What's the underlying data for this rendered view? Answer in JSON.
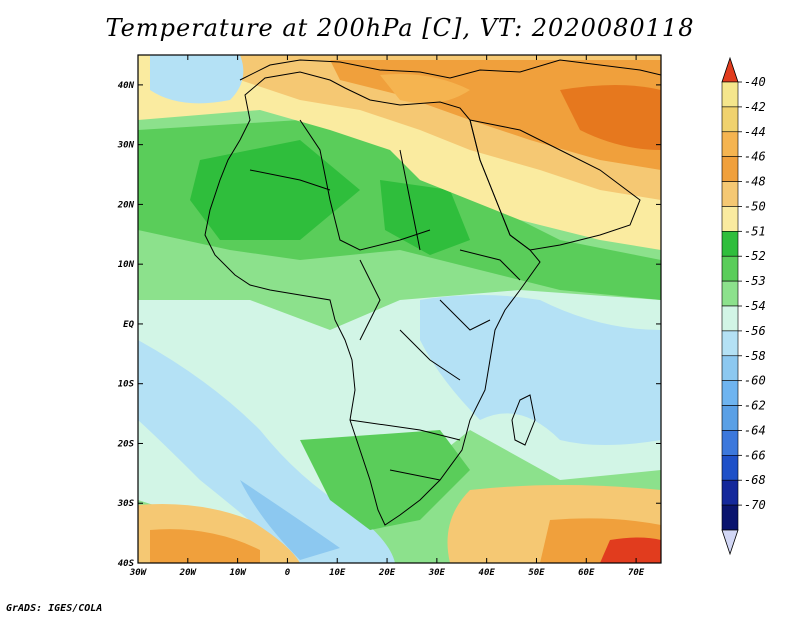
{
  "title": "Temperature at 200hPa [C], VT: 2020080118",
  "credit": "GrADS: IGES/COLA",
  "map": {
    "lon_range": [
      -30,
      75
    ],
    "lat_range": [
      -40,
      45
    ],
    "lon_ticks": [
      "30W",
      "20W",
      "10W",
      "0",
      "10E",
      "20E",
      "30E",
      "40E",
      "50E",
      "60E",
      "70E"
    ],
    "lat_ticks": [
      "40N",
      "30N",
      "20N",
      "10N",
      "EQ",
      "10S",
      "20S",
      "30S",
      "40S"
    ]
  },
  "colorbar": {
    "labels": [
      "-40",
      "-42",
      "-44",
      "-46",
      "-48",
      "-50",
      "-51",
      "-52",
      "-53",
      "-54",
      "-56",
      "-58",
      "-60",
      "-62",
      "-64",
      "-66",
      "-68",
      "-70"
    ],
    "colors": [
      "#f5e68c",
      "#f0d26e",
      "#f5b450",
      "#f0a03c",
      "#f5c873",
      "#faeba0",
      "#2fbe3c",
      "#5acd5a",
      "#8ce18c",
      "#d2f5e6",
      "#b4e1f5",
      "#8cc8f0",
      "#6eb4f0",
      "#5aa0e6",
      "#3c78dc",
      "#1e50c8",
      "#14289b",
      "#0a146e"
    ],
    "top_triangle": "#e13c1e",
    "bottom_triangle": "#d2d7f5"
  },
  "field_colors": {
    "ocean_cold": "#b4e1f5",
    "pale": "#d2f5e6",
    "green_light": "#8ce18c",
    "green_mid": "#5acd5a",
    "green_dark": "#2fbe3c",
    "yellow_pale": "#faeba0",
    "yellow": "#f5d27d",
    "orange": "#f0a03c",
    "orange_dark": "#e6781e",
    "red": "#e13c1e",
    "blue_deep": "#8cc8f0"
  }
}
